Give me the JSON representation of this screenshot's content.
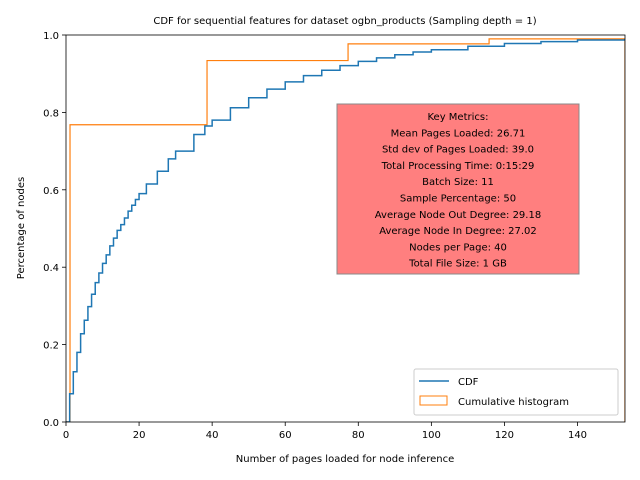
{
  "chart_data": {
    "type": "line",
    "title": "CDF for sequential features for dataset ogbn_products (Sampling depth = 1)",
    "xlabel": "Number of pages loaded for node inference",
    "ylabel": "Percentage of nodes",
    "xlim": [
      0,
      153
    ],
    "ylim": [
      0,
      1.0
    ],
    "xticks": [
      0,
      20,
      40,
      60,
      80,
      100,
      120,
      140
    ],
    "yticks": [
      0.0,
      0.2,
      0.4,
      0.6,
      0.8,
      1.0
    ],
    "xtick_labels": [
      "0",
      "20",
      "40",
      "60",
      "80",
      "100",
      "120",
      "140"
    ],
    "ytick_labels": [
      "0.0",
      "0.2",
      "0.4",
      "0.6",
      "0.8",
      "1.0"
    ],
    "grid": false,
    "legend_position": "lower-right",
    "series": [
      {
        "name": "CDF",
        "style": "step-line",
        "color": "#1f77b4",
        "x": [
          1,
          2,
          3,
          4,
          5,
          6,
          7,
          8,
          9,
          10,
          11,
          12,
          13,
          14,
          15,
          16,
          17,
          18,
          19,
          20,
          22,
          25,
          28,
          30,
          35,
          38,
          40,
          45,
          50,
          55,
          60,
          65,
          70,
          75,
          80,
          85,
          90,
          95,
          100,
          110,
          120,
          130,
          140,
          153
        ],
        "y": [
          0.073,
          0.13,
          0.18,
          0.228,
          0.263,
          0.298,
          0.33,
          0.36,
          0.385,
          0.41,
          0.432,
          0.455,
          0.475,
          0.495,
          0.51,
          0.527,
          0.545,
          0.56,
          0.575,
          0.59,
          0.615,
          0.648,
          0.68,
          0.7,
          0.743,
          0.765,
          0.78,
          0.812,
          0.838,
          0.86,
          0.879,
          0.895,
          0.909,
          0.921,
          0.932,
          0.941,
          0.949,
          0.956,
          0.962,
          0.971,
          0.978,
          0.983,
          0.987,
          0.99
        ]
      },
      {
        "name": "Cumulative histogram",
        "style": "step-outline",
        "color": "#ff7f0e",
        "bin_edges": [
          0,
          1.1,
          38.6,
          77.2,
          115.8,
          153
        ],
        "cumulative": [
          0.0,
          0.768,
          0.934,
          0.977,
          0.99
        ]
      }
    ]
  },
  "metrics_box": {
    "background": "#ff7f7f",
    "lines": [
      "Key Metrics:",
      "Mean Pages Loaded: 26.71",
      "Std dev of Pages Loaded: 39.0",
      "Total Processing Time: 0:15:29",
      "Batch Size: 11",
      "Sample Percentage: 50",
      "Average Node Out Degree: 29.18",
      "Average Node In Degree: 27.02",
      "Nodes per Page: 40",
      "Total File Size: 1 GB"
    ]
  }
}
